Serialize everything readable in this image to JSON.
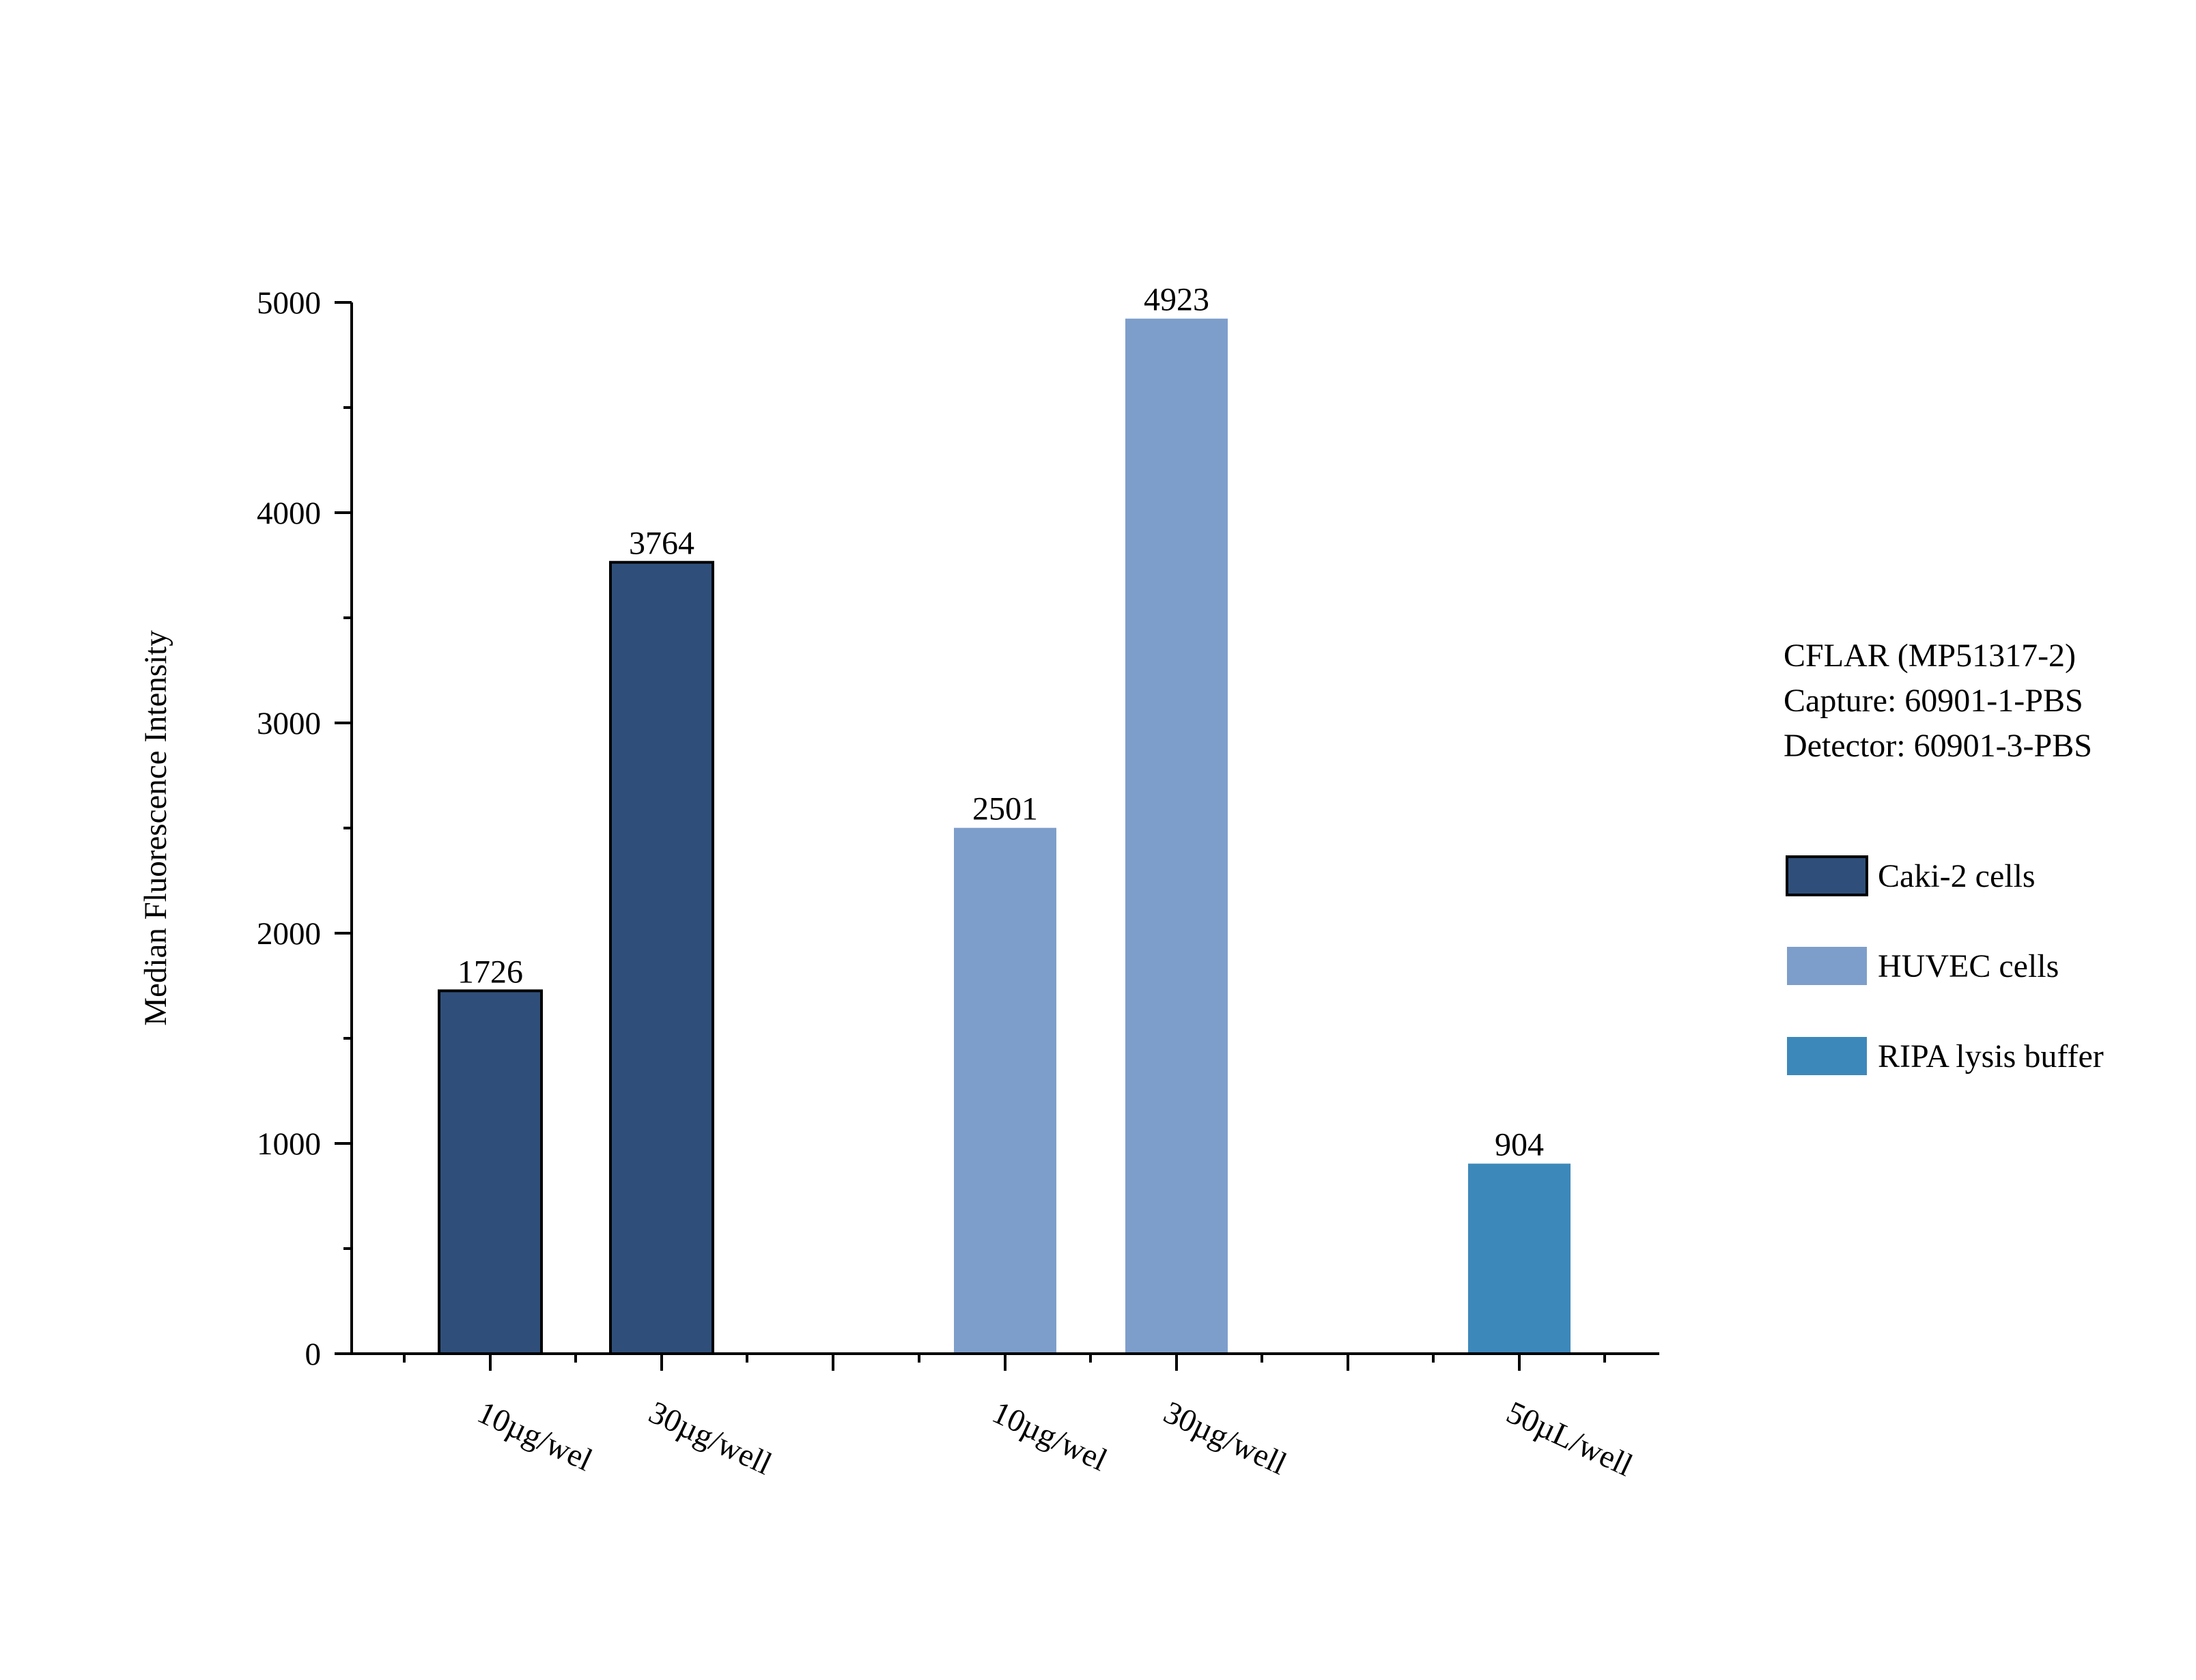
{
  "chart_data": {
    "type": "bar",
    "ylabel": "Median Fluorescence Intensity",
    "ylim": [
      0,
      5000
    ],
    "yticks": [
      0,
      1000,
      2000,
      3000,
      4000,
      5000
    ],
    "grid": false,
    "legend_position": "right",
    "bars": [
      {
        "category": "10µg/wel",
        "series": "Caki-2 cells",
        "value": 1726,
        "label": "1726"
      },
      {
        "category": "30µg/well",
        "series": "Caki-2 cells",
        "value": 3764,
        "label": "3764"
      },
      {
        "category": "10µg/wel",
        "series": "HUVEC cells",
        "value": 2501,
        "label": "2501"
      },
      {
        "category": "30µg/well",
        "series": "HUVEC cells",
        "value": 4923,
        "label": "4923"
      },
      {
        "category": "50µL/well",
        "series": "RIPA lysis buffer",
        "value": 904,
        "label": "904"
      }
    ],
    "series": [
      {
        "name": "Caki-2 cells",
        "color": "#2f4f7a",
        "outlined": true
      },
      {
        "name": "HUVEC cells",
        "color": "#7d9ecb",
        "outlined": false
      },
      {
        "name": "RIPA lysis buffer",
        "color": "#3d88bb",
        "outlined": false
      }
    ],
    "info_lines": [
      "CFLAR (MP51317-2)",
      "Capture: 60901-1-PBS",
      "Detector: 60901-3-PBS"
    ]
  }
}
